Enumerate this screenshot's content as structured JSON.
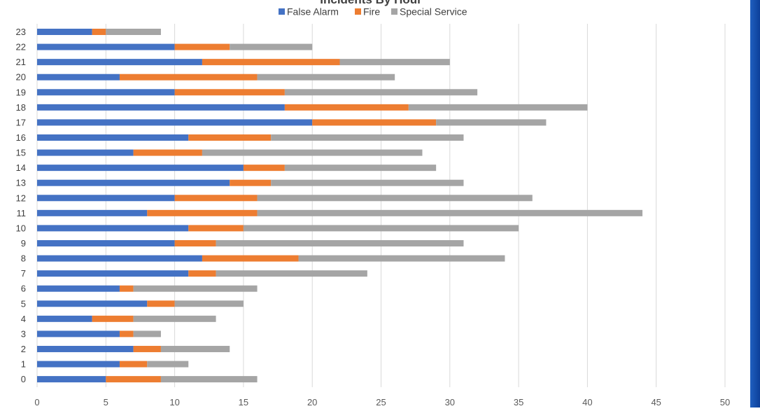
{
  "chart_data": {
    "type": "bar",
    "orientation": "horizontal",
    "stacked": true,
    "title": "Incidents By Hour",
    "xlabel": "",
    "ylabel": "",
    "xlim": [
      0,
      50
    ],
    "x_ticks": [
      0,
      5,
      10,
      15,
      20,
      25,
      30,
      35,
      40,
      45,
      50
    ],
    "categories": [
      "0",
      "1",
      "2",
      "3",
      "4",
      "5",
      "6",
      "7",
      "8",
      "9",
      "10",
      "11",
      "12",
      "13",
      "14",
      "15",
      "16",
      "17",
      "18",
      "19",
      "20",
      "21",
      "22",
      "23"
    ],
    "series": [
      {
        "name": "False Alarm",
        "color": "#4472C4",
        "values": [
          5,
          6,
          7,
          6,
          4,
          8,
          6,
          11,
          12,
          10,
          11,
          8,
          10,
          14,
          15,
          7,
          11,
          20,
          18,
          10,
          6,
          12,
          10,
          4
        ]
      },
      {
        "name": "Fire",
        "color": "#ED7D31",
        "values": [
          4,
          2,
          2,
          1,
          3,
          2,
          1,
          2,
          7,
          3,
          4,
          8,
          6,
          3,
          3,
          5,
          6,
          9,
          9,
          8,
          10,
          10,
          4,
          1
        ]
      },
      {
        "name": "Special Service",
        "color": "#A5A5A5",
        "values": [
          7,
          3,
          5,
          2,
          6,
          5,
          9,
          11,
          15,
          18,
          20,
          28,
          20,
          14,
          11,
          16,
          14,
          8,
          13,
          14,
          10,
          8,
          6,
          4
        ]
      }
    ],
    "legend_position": "top",
    "grid": "vertical"
  }
}
